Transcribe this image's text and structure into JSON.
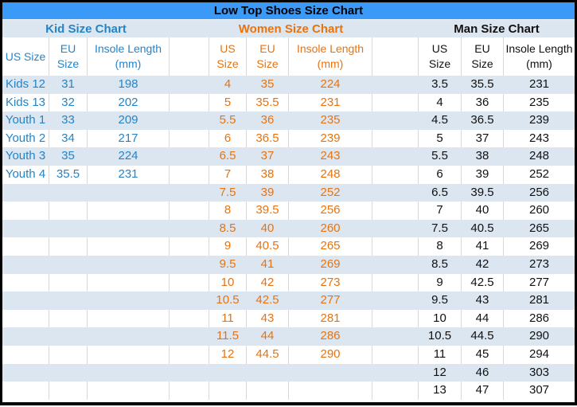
{
  "title": "Low Top Shoes Size Chart",
  "colors": {
    "title_bar_bg": "#3B9AF8",
    "band_blue": "#DCE6F1",
    "kid_text": "#2584C6",
    "women_text": "#E8730E",
    "man_text": "#111111",
    "grid_line": "#D9D9D9",
    "outer_border": "#000000"
  },
  "sections": [
    {
      "key": "kid",
      "title": "Kid Size Chart",
      "columns": [
        [
          "US Size"
        ],
        [
          "EU",
          "Size"
        ],
        [
          "Insole Length",
          "(mm)"
        ]
      ],
      "rows": [
        [
          "Kids 12",
          "31",
          "198"
        ],
        [
          "Kids 13",
          "32",
          "202"
        ],
        [
          "Youth 1",
          "33",
          "209"
        ],
        [
          "Youth 2",
          "34",
          "217"
        ],
        [
          "Youth 3",
          "35",
          "224"
        ],
        [
          "Youth 4",
          "35.5",
          "231"
        ]
      ]
    },
    {
      "key": "women",
      "title": "Women Size Chart",
      "columns": [
        [
          "US",
          "Size"
        ],
        [
          "EU",
          "Size"
        ],
        [
          "Insole Length",
          "(mm)"
        ]
      ],
      "rows": [
        [
          "4",
          "35",
          "224"
        ],
        [
          "5",
          "35.5",
          "231"
        ],
        [
          "5.5",
          "36",
          "235"
        ],
        [
          "6",
          "36.5",
          "239"
        ],
        [
          "6.5",
          "37",
          "243"
        ],
        [
          "7",
          "38",
          "248"
        ],
        [
          "7.5",
          "39",
          "252"
        ],
        [
          "8",
          "39.5",
          "256"
        ],
        [
          "8.5",
          "40",
          "260"
        ],
        [
          "9",
          "40.5",
          "265"
        ],
        [
          "9.5",
          "41",
          "269"
        ],
        [
          "10",
          "42",
          "273"
        ],
        [
          "10.5",
          "42.5",
          "277"
        ],
        [
          "11",
          "43",
          "281"
        ],
        [
          "11.5",
          "44",
          "286"
        ],
        [
          "12",
          "44.5",
          "290"
        ]
      ]
    },
    {
      "key": "man",
      "title": "Man Size Chart",
      "columns": [
        [
          "US",
          "Size"
        ],
        [
          "EU",
          "Size"
        ],
        [
          "Insole Length",
          "(mm)"
        ]
      ],
      "rows": [
        [
          "3.5",
          "35.5",
          "231"
        ],
        [
          "4",
          "36",
          "235"
        ],
        [
          "4.5",
          "36.5",
          "239"
        ],
        [
          "5",
          "37",
          "243"
        ],
        [
          "5.5",
          "38",
          "248"
        ],
        [
          "6",
          "39",
          "252"
        ],
        [
          "6.5",
          "39.5",
          "256"
        ],
        [
          "7",
          "40",
          "260"
        ],
        [
          "7.5",
          "40.5",
          "265"
        ],
        [
          "8",
          "41",
          "269"
        ],
        [
          "8.5",
          "42",
          "273"
        ],
        [
          "9",
          "42.5",
          "277"
        ],
        [
          "9.5",
          "43",
          "281"
        ],
        [
          "10",
          "44",
          "286"
        ],
        [
          "10.5",
          "44.5",
          "290"
        ],
        [
          "11",
          "45",
          "294"
        ],
        [
          "12",
          "46",
          "303"
        ],
        [
          "13",
          "47",
          "307"
        ]
      ]
    }
  ],
  "layout_hint": {
    "total_data_rows": 18
  }
}
